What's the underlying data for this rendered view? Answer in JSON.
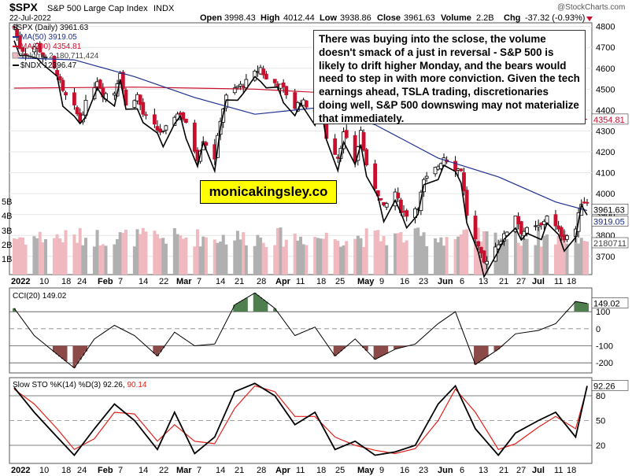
{
  "header": {
    "symbol": "$SPX",
    "name": "S&P 500 Large Cap Index",
    "exchange": "INDX",
    "date": "22-Jul-2022",
    "watermark": "@StockCharts.com",
    "open_label": "Open",
    "open": "3998.43",
    "high_label": "High",
    "high": "4012.44",
    "low_label": "Low",
    "low": "3938.86",
    "close_label": "Close",
    "close": "3961.63",
    "volume_label": "Volume",
    "volume": "2.2B",
    "chg_label": "Chg",
    "chg": "-37.32 (-0.93%)"
  },
  "legend": {
    "main": "$SPX (Daily) 3961.63",
    "ma50": "MA(50) 3919.05",
    "ma200": "MA(200) 4354.81",
    "volume": "Volume 2,180,711,424",
    "ndx": "$NDX 12396.47"
  },
  "annotation": {
    "text": "There was buying into the sclose, the volume doesn't smack of a just in reversal - S&P 500 is likely to drift higher Monday, and the bears would need to step in with more conviction. Given the tech earnings ahead, TSLA trading, discretionaries doing well, S&P 500 downswing may not materialize that immediately."
  },
  "brand": "monicakingsley.co",
  "colors": {
    "up": "#ffffff",
    "down": "#c8102e",
    "ma50": "#1f2f8f",
    "ma200": "#c8102e",
    "ndx": "#000000",
    "vol_up": "#b0b0b0",
    "vol_down": "#f0b8bf",
    "cci_fill": "#4f7f4f",
    "cci_fill_neg": "#8b4a48",
    "stoch_k": "#000000",
    "stoch_d": "#e0201a"
  },
  "x_axis": {
    "labels": [
      "2022",
      "10",
      "18",
      "24",
      "Feb",
      "7",
      "14",
      "22",
      "Mar",
      "7",
      "14",
      "21",
      "28",
      "Apr",
      "11",
      "18",
      "25",
      "May",
      "9",
      "16",
      "23",
      "Jun",
      "6",
      "13",
      "21",
      "27",
      "Jul",
      "11",
      "18"
    ],
    "bold": [
      "2022",
      "Feb",
      "Mar",
      "Apr",
      "May",
      "Jun",
      "Jul"
    ]
  },
  "chart_data": [
    {
      "type": "candlestick",
      "title": "$SPX (Daily)",
      "y_ticks": [
        3700,
        3800,
        3900,
        4000,
        4100,
        4200,
        4300,
        4400,
        4500,
        4600,
        4700,
        4800
      ],
      "ylim": [
        3620,
        4810
      ],
      "volume_ticks": [
        "1B",
        "2B",
        "3B",
        "4B",
        "5B"
      ],
      "last_labels": {
        "close": "3961.63",
        "ma50": "3919.05",
        "ma200": "4354.81",
        "volume": "2180711"
      },
      "close_points": [
        [
          "2022-01-03",
          4797
        ],
        [
          "2022-01-05",
          4700
        ],
        [
          "2022-01-07",
          4677
        ],
        [
          "2022-01-11",
          4713
        ],
        [
          "2022-01-13",
          4659
        ],
        [
          "2022-01-18",
          4577
        ],
        [
          "2022-01-20",
          4483
        ],
        [
          "2022-01-24",
          4410
        ],
        [
          "2022-01-26",
          4350
        ],
        [
          "2022-01-28",
          4432
        ],
        [
          "2022-02-01",
          4546
        ],
        [
          "2022-02-03",
          4477
        ],
        [
          "2022-02-07",
          4484
        ],
        [
          "2022-02-09",
          4587
        ],
        [
          "2022-02-11",
          4419
        ],
        [
          "2022-02-15",
          4471
        ],
        [
          "2022-02-17",
          4380
        ],
        [
          "2022-02-22",
          4305
        ],
        [
          "2022-02-24",
          4289
        ],
        [
          "2022-02-28",
          4374
        ],
        [
          "2022-03-02",
          4387
        ],
        [
          "2022-03-04",
          4329
        ],
        [
          "2022-03-08",
          4170
        ],
        [
          "2022-03-10",
          4260
        ],
        [
          "2022-03-14",
          4173
        ],
        [
          "2022-03-16",
          4357
        ],
        [
          "2022-03-18",
          4463
        ],
        [
          "2022-03-22",
          4512
        ],
        [
          "2022-03-24",
          4520
        ],
        [
          "2022-03-28",
          4575
        ],
        [
          "2022-03-30",
          4602
        ],
        [
          "2022-04-01",
          4546
        ],
        [
          "2022-04-05",
          4525
        ],
        [
          "2022-04-07",
          4500
        ],
        [
          "2022-04-11",
          4413
        ],
        [
          "2022-04-13",
          4446
        ],
        [
          "2022-04-18",
          4392
        ],
        [
          "2022-04-20",
          4460
        ],
        [
          "2022-04-22",
          4272
        ],
        [
          "2022-04-26",
          4175
        ],
        [
          "2022-04-28",
          4287
        ],
        [
          "2022-05-02",
          4155
        ],
        [
          "2022-05-04",
          4300
        ],
        [
          "2022-05-06",
          4123
        ],
        [
          "2022-05-10",
          4001
        ],
        [
          "2022-05-12",
          3930
        ],
        [
          "2022-05-16",
          4008
        ],
        [
          "2022-05-18",
          3923
        ],
        [
          "2022-05-20",
          3901
        ],
        [
          "2022-05-24",
          3941
        ],
        [
          "2022-05-26",
          4058
        ],
        [
          "2022-05-31",
          4132
        ],
        [
          "2022-06-02",
          4176
        ],
        [
          "2022-06-06",
          4121
        ],
        [
          "2022-06-08",
          4116
        ],
        [
          "2022-06-10",
          3900
        ],
        [
          "2022-06-14",
          3735
        ],
        [
          "2022-06-16",
          3667
        ],
        [
          "2022-06-21",
          3765
        ],
        [
          "2022-06-23",
          3796
        ],
        [
          "2022-06-27",
          3900
        ],
        [
          "2022-06-29",
          3818
        ],
        [
          "2022-07-01",
          3825
        ],
        [
          "2022-07-06",
          3845
        ],
        [
          "2022-07-08",
          3899
        ],
        [
          "2022-07-12",
          3819
        ],
        [
          "2022-07-14",
          3790
        ],
        [
          "2022-07-18",
          3831
        ],
        [
          "2022-07-20",
          3960
        ],
        [
          "2022-07-22",
          3962
        ]
      ],
      "ma50": [
        [
          "2022-01-03",
          4650
        ],
        [
          "2022-01-24",
          4640
        ],
        [
          "2022-02-14",
          4560
        ],
        [
          "2022-03-07",
          4460
        ],
        [
          "2022-03-28",
          4380
        ],
        [
          "2022-04-18",
          4410
        ],
        [
          "2022-05-09",
          4330
        ],
        [
          "2022-05-31",
          4170
        ],
        [
          "2022-06-21",
          4080
        ],
        [
          "2022-07-11",
          3960
        ],
        [
          "2022-07-22",
          3919
        ]
      ],
      "ma200": [
        [
          "2022-01-03",
          4505
        ],
        [
          "2022-02-14",
          4510
        ],
        [
          "2022-03-28",
          4500
        ],
        [
          "2022-05-09",
          4470
        ],
        [
          "2022-06-21",
          4400
        ],
        [
          "2022-07-22",
          4355
        ]
      ],
      "ndx_overlay": "$NDX 12396.47"
    },
    {
      "type": "line",
      "title": "CCI(20) 149.02",
      "y_ticks": [
        -200,
        -100,
        0,
        100
      ],
      "ylim": [
        -250,
        230
      ],
      "last": "149.02",
      "points": [
        [
          "2022-01-03",
          120
        ],
        [
          "2022-01-10",
          -40
        ],
        [
          "2022-01-18",
          -150
        ],
        [
          "2022-01-24",
          -230
        ],
        [
          "2022-01-31",
          -60
        ],
        [
          "2022-02-07",
          20
        ],
        [
          "2022-02-14",
          -40
        ],
        [
          "2022-02-22",
          -160
        ],
        [
          "2022-02-28",
          -20
        ],
        [
          "2022-03-07",
          -100
        ],
        [
          "2022-03-14",
          -90
        ],
        [
          "2022-03-21",
          140
        ],
        [
          "2022-03-28",
          210
        ],
        [
          "2022-04-04",
          120
        ],
        [
          "2022-04-11",
          -40
        ],
        [
          "2022-04-18",
          10
        ],
        [
          "2022-04-25",
          -160
        ],
        [
          "2022-05-02",
          -60
        ],
        [
          "2022-05-09",
          -180
        ],
        [
          "2022-05-16",
          -120
        ],
        [
          "2022-05-23",
          -90
        ],
        [
          "2022-05-31",
          30
        ],
        [
          "2022-06-06",
          100
        ],
        [
          "2022-06-13",
          -210
        ],
        [
          "2022-06-21",
          -120
        ],
        [
          "2022-06-27",
          -30
        ],
        [
          "2022-07-05",
          -10
        ],
        [
          "2022-07-11",
          30
        ],
        [
          "2022-07-18",
          160
        ],
        [
          "2022-07-22",
          149
        ]
      ]
    },
    {
      "type": "line",
      "title": "Slow STO %K(14) %D(3) 92.26, 90.14",
      "y_ticks": [
        20,
        50,
        80
      ],
      "ylim": [
        0,
        100
      ],
      "last_k": "92.26",
      "last_d": "90.14",
      "series": [
        {
          "name": "%K(14)",
          "points": [
            [
              "2022-01-03",
              90
            ],
            [
              "2022-01-10",
              60
            ],
            [
              "2022-01-18",
              30
            ],
            [
              "2022-01-24",
              8
            ],
            [
              "2022-01-31",
              40
            ],
            [
              "2022-02-07",
              70
            ],
            [
              "2022-02-14",
              50
            ],
            [
              "2022-02-22",
              15
            ],
            [
              "2022-02-28",
              60
            ],
            [
              "2022-03-07",
              10
            ],
            [
              "2022-03-14",
              30
            ],
            [
              "2022-03-21",
              85
            ],
            [
              "2022-03-28",
              95
            ],
            [
              "2022-04-04",
              80
            ],
            [
              "2022-04-11",
              45
            ],
            [
              "2022-04-18",
              60
            ],
            [
              "2022-04-25",
              15
            ],
            [
              "2022-05-02",
              25
            ],
            [
              "2022-05-09",
              8
            ],
            [
              "2022-05-16",
              12
            ],
            [
              "2022-05-23",
              20
            ],
            [
              "2022-05-31",
              70
            ],
            [
              "2022-06-06",
              92
            ],
            [
              "2022-06-13",
              40
            ],
            [
              "2022-06-21",
              8
            ],
            [
              "2022-06-27",
              35
            ],
            [
              "2022-07-05",
              50
            ],
            [
              "2022-07-11",
              60
            ],
            [
              "2022-07-18",
              30
            ],
            [
              "2022-07-22",
              92
            ]
          ]
        },
        {
          "name": "%D(3)",
          "points": [
            [
              "2022-01-03",
              88
            ],
            [
              "2022-01-10",
              70
            ],
            [
              "2022-01-18",
              40
            ],
            [
              "2022-01-24",
              15
            ],
            [
              "2022-01-31",
              28
            ],
            [
              "2022-02-07",
              60
            ],
            [
              "2022-02-14",
              58
            ],
            [
              "2022-02-22",
              25
            ],
            [
              "2022-02-28",
              45
            ],
            [
              "2022-03-07",
              25
            ],
            [
              "2022-03-14",
              22
            ],
            [
              "2022-03-21",
              65
            ],
            [
              "2022-03-28",
              92
            ],
            [
              "2022-04-04",
              85
            ],
            [
              "2022-04-11",
              55
            ],
            [
              "2022-04-18",
              55
            ],
            [
              "2022-04-25",
              30
            ],
            [
              "2022-05-02",
              20
            ],
            [
              "2022-05-09",
              14
            ],
            [
              "2022-05-16",
              10
            ],
            [
              "2022-05-23",
              16
            ],
            [
              "2022-05-31",
              50
            ],
            [
              "2022-06-06",
              88
            ],
            [
              "2022-06-13",
              60
            ],
            [
              "2022-06-21",
              15
            ],
            [
              "2022-06-27",
              22
            ],
            [
              "2022-07-05",
              42
            ],
            [
              "2022-07-11",
              55
            ],
            [
              "2022-07-18",
              40
            ],
            [
              "2022-07-22",
              90
            ]
          ]
        }
      ]
    }
  ]
}
